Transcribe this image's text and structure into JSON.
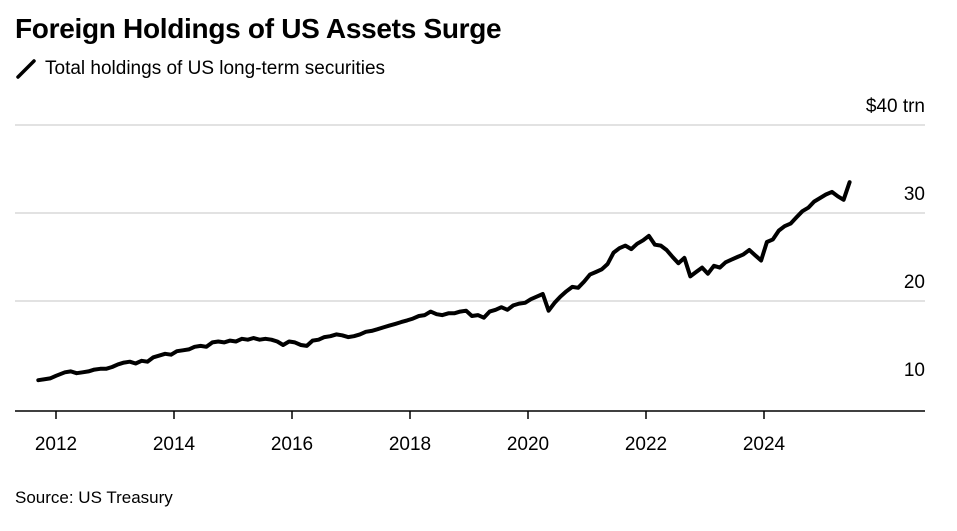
{
  "title": "Foreign Holdings of US Assets Surge",
  "colors": {
    "line": "#000000",
    "grid": "#d9d9d9",
    "axis": "#000000",
    "text": "#000000"
  },
  "source": "Source: US Treasury",
  "chart_data": {
    "type": "line",
    "title": "Foreign Holdings of US Assets Surge",
    "unit_label": "$40 trn",
    "y_ticks": [
      {
        "value": 40,
        "label": "$40 trn"
      },
      {
        "value": 30,
        "label": "30"
      },
      {
        "value": 20,
        "label": "20"
      },
      {
        "value": 10,
        "label": "10"
      }
    ],
    "x_ticks": [
      {
        "value": 2012,
        "label": "2012"
      },
      {
        "value": 2014,
        "label": "2014"
      },
      {
        "value": 2016,
        "label": "2016"
      },
      {
        "value": 2018,
        "label": "2018"
      },
      {
        "value": 2020,
        "label": "2020"
      },
      {
        "value": 2022,
        "label": "2022"
      },
      {
        "value": 2024,
        "label": "2024"
      }
    ],
    "xlim": [
      2011.3,
      2026.4
    ],
    "ylim": [
      9.5,
      40
    ],
    "grid": true,
    "legend_position": "top-left",
    "series": [
      {
        "name": "Total holdings of US long-term securities",
        "x": [
          2011.7,
          2011.9,
          2012.0,
          2012.15,
          2012.25,
          2012.35,
          2012.45,
          2012.55,
          2012.65,
          2012.75,
          2012.85,
          2012.95,
          2013.05,
          2013.15,
          2013.25,
          2013.35,
          2013.45,
          2013.55,
          2013.65,
          2013.75,
          2013.85,
          2013.95,
          2014.05,
          2014.15,
          2014.25,
          2014.35,
          2014.45,
          2014.55,
          2014.65,
          2014.75,
          2014.85,
          2014.95,
          2015.05,
          2015.15,
          2015.25,
          2015.35,
          2015.45,
          2015.55,
          2015.65,
          2015.75,
          2015.85,
          2015.95,
          2016.05,
          2016.15,
          2016.25,
          2016.35,
          2016.45,
          2016.55,
          2016.65,
          2016.75,
          2016.85,
          2016.95,
          2017.05,
          2017.15,
          2017.25,
          2017.35,
          2017.45,
          2017.55,
          2017.65,
          2017.75,
          2017.85,
          2017.95,
          2018.05,
          2018.15,
          2018.25,
          2018.35,
          2018.45,
          2018.55,
          2018.65,
          2018.75,
          2018.85,
          2018.95,
          2019.05,
          2019.15,
          2019.25,
          2019.35,
          2019.45,
          2019.55,
          2019.65,
          2019.75,
          2019.85,
          2019.95,
          2020.05,
          2020.15,
          2020.25,
          2020.35,
          2020.45,
          2020.55,
          2020.65,
          2020.75,
          2020.85,
          2020.95,
          2021.05,
          2021.15,
          2021.25,
          2021.35,
          2021.45,
          2021.55,
          2021.65,
          2021.75,
          2021.85,
          2021.95,
          2022.05,
          2022.15,
          2022.25,
          2022.35,
          2022.45,
          2022.55,
          2022.65,
          2022.75,
          2022.85,
          2022.95,
          2023.05,
          2023.15,
          2023.25,
          2023.35,
          2023.45,
          2023.55,
          2023.65,
          2023.75,
          2023.85,
          2023.95,
          2024.05,
          2024.15,
          2024.25,
          2024.35,
          2024.45,
          2024.55,
          2024.65,
          2024.75,
          2024.85,
          2024.95,
          2025.05,
          2025.15,
          2025.25,
          2025.35,
          2025.45
        ],
        "values": [
          11.0,
          11.2,
          11.5,
          11.9,
          12.0,
          11.8,
          11.9,
          12.0,
          12.2,
          12.3,
          12.3,
          12.5,
          12.8,
          13.0,
          13.1,
          12.9,
          13.2,
          13.1,
          13.6,
          13.8,
          14.0,
          13.9,
          14.3,
          14.4,
          14.5,
          14.8,
          14.9,
          14.8,
          15.3,
          15.4,
          15.3,
          15.5,
          15.4,
          15.7,
          15.6,
          15.8,
          15.6,
          15.7,
          15.6,
          15.4,
          15.0,
          15.4,
          15.3,
          15.0,
          14.9,
          15.5,
          15.6,
          15.9,
          16.0,
          16.2,
          16.1,
          15.9,
          16.0,
          16.2,
          16.5,
          16.6,
          16.8,
          17.0,
          17.2,
          17.4,
          17.6,
          17.8,
          18.0,
          18.3,
          18.4,
          18.8,
          18.5,
          18.4,
          18.6,
          18.6,
          18.8,
          18.9,
          18.3,
          18.4,
          18.1,
          18.8,
          19.0,
          19.3,
          19.0,
          19.5,
          19.7,
          19.8,
          20.2,
          20.5,
          20.8,
          18.9,
          19.8,
          20.5,
          21.1,
          21.6,
          21.5,
          22.2,
          23.0,
          23.3,
          23.6,
          24.2,
          25.5,
          26.0,
          26.3,
          25.9,
          26.5,
          26.9,
          27.4,
          26.4,
          26.3,
          25.8,
          25.0,
          24.3,
          24.9,
          22.8,
          23.3,
          23.8,
          23.1,
          24.0,
          23.8,
          24.4,
          24.7,
          25.0,
          25.3,
          25.8,
          25.2,
          24.6,
          26.7,
          27.0,
          28.0,
          28.5,
          28.8,
          29.5,
          30.2,
          30.6,
          31.3,
          31.7,
          32.1,
          32.4,
          31.9,
          31.5,
          33.5
        ]
      }
    ]
  }
}
